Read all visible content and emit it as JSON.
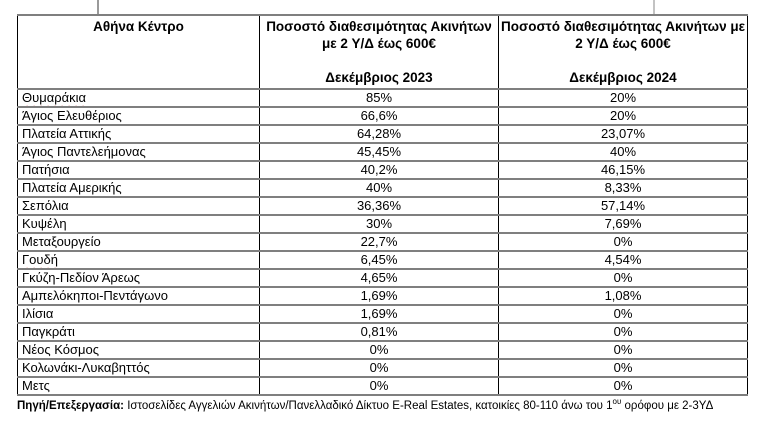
{
  "table": {
    "header": {
      "area_title": "Αθήνα Κέντρο",
      "col2023_title_line1": "Ποσοστό διαθεσιμότητας Ακινήτων",
      "col2023_title_line2": "με 2 Υ/Δ έως 600€",
      "col2023_period": "Δεκέμβριος 2023",
      "col2024_title_line1": "Ποσοστό διαθεσιμότητας Ακινήτων με",
      "col2024_title_line2": "2 Υ/Δ έως 600€",
      "col2024_period": "Δεκέμβριος 2024"
    },
    "rows": [
      {
        "area": "Θυμαράκια",
        "dec2023": "85%",
        "dec2024": "20%",
        "spellcheck_underline": true
      },
      {
        "area": "Άγιος Ελευθέριος",
        "dec2023": "66,6%",
        "dec2024": "20%",
        "spellcheck_underline": false
      },
      {
        "area": "Πλατεία Αττικής",
        "dec2023": "64,28%",
        "dec2024": "23,07%",
        "spellcheck_underline": false
      },
      {
        "area": "Άγιος Παντελεήμονας",
        "dec2023": "45,45%",
        "dec2024": "40%",
        "spellcheck_underline": false
      },
      {
        "area": "Πατήσια",
        "dec2023": "40,2%",
        "dec2024": "46,15%",
        "spellcheck_underline": false
      },
      {
        "area": "Πλατεία Αμερικής",
        "dec2023": "40%",
        "dec2024": "8,33%",
        "spellcheck_underline": false
      },
      {
        "area": "Σεπόλια",
        "dec2023": "36,36%",
        "dec2024": "57,14%",
        "spellcheck_underline": false
      },
      {
        "area": "Κυψέλη",
        "dec2023": "30%",
        "dec2024": "7,69%",
        "spellcheck_underline": false
      },
      {
        "area": "Μεταξουργείο",
        "dec2023": "22,7%",
        "dec2024": "0%",
        "spellcheck_underline": false
      },
      {
        "area": "Γουδή",
        "dec2023": "6,45%",
        "dec2024": "4,54%",
        "spellcheck_underline": true
      },
      {
        "area": "Γκύζη-Πεδίον Άρεως",
        "dec2023": "4,65%",
        "dec2024": "0%",
        "spellcheck_underline": false
      },
      {
        "area": "Αμπελόκηποι-Πεντάγωνο",
        "dec2023": "1,69%",
        "dec2024": "1,08%",
        "spellcheck_underline": false
      },
      {
        "area": "Ιλίσια",
        "dec2023": "1,69%",
        "dec2024": "0%",
        "spellcheck_underline": false
      },
      {
        "area": "Παγκράτι",
        "dec2023": "0,81%",
        "dec2024": "0%",
        "spellcheck_underline": false
      },
      {
        "area": "Νέος Κόσμος",
        "dec2023": "0%",
        "dec2024": "0%",
        "spellcheck_underline": false
      },
      {
        "area": "Κολωνάκι-Λυκαβηττός",
        "dec2023": "0%",
        "dec2024": "0%",
        "spellcheck_underline": false
      },
      {
        "area": "Μετς",
        "dec2023": "0%",
        "dec2024": "0%",
        "spellcheck_underline": false
      }
    ]
  },
  "footer": {
    "label": "Πηγή/Επεξεργασία:",
    "text_before_sup": " Ιστοσελίδες Αγγελιών Ακινήτων/Πανελλαδικό Δίκτυο E-Real Estates, κατοικίες 80-110 άνω του 1",
    "superscript": "ου",
    "text_after_sup": " ορόφου με 2-3ΥΔ"
  },
  "colors": {
    "row_border": "#7f7f7f",
    "column_border": "#000000",
    "spellcheck_underline": "#cc1f1f",
    "background": "#ffffff"
  }
}
